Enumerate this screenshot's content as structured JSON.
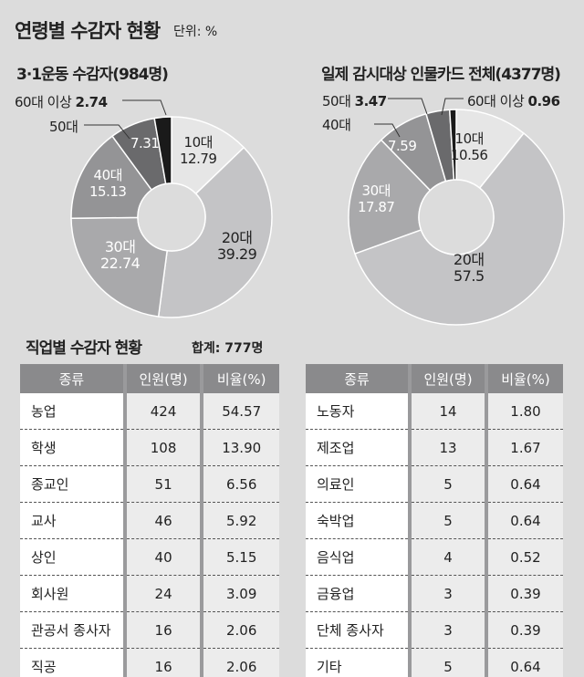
{
  "title": "연령별 수감자 현황",
  "unit": "단위: %",
  "chart_data": [
    {
      "type": "pie",
      "title": "3·1운동 수감자(984명)",
      "categories": [
        "10대",
        "20대",
        "30대",
        "40대",
        "50대",
        "60대 이상"
      ],
      "values": [
        12.79,
        39.29,
        22.74,
        15.13,
        7.31,
        2.74
      ],
      "colors": [
        "#e6e6e6",
        "#c4c4c6",
        "#a9a9ab",
        "#949496",
        "#6a6a6c",
        "#1a1a1a"
      ]
    },
    {
      "type": "pie",
      "title": "일제 감시대상 인물카드 전체(4377명)",
      "categories": [
        "10대",
        "20대",
        "30대",
        "40대",
        "50대",
        "60대 이상"
      ],
      "values": [
        10.56,
        57.5,
        17.87,
        7.59,
        3.47,
        0.96
      ],
      "colors": [
        "#e6e6e6",
        "#c4c4c6",
        "#a9a9ab",
        "#949496",
        "#6a6a6c",
        "#1a1a1a"
      ]
    }
  ],
  "jobs": {
    "title": "직업별 수감자 현황",
    "total": "합계: 777명",
    "headers": [
      "종류",
      "인원(명)",
      "비율(%)"
    ],
    "left": [
      [
        "농업",
        "424",
        "54.57"
      ],
      [
        "학생",
        "108",
        "13.90"
      ],
      [
        "종교인",
        "51",
        "6.56"
      ],
      [
        "교사",
        "46",
        "5.92"
      ],
      [
        "상인",
        "40",
        "5.15"
      ],
      [
        "회사원",
        "24",
        "3.09"
      ],
      [
        "관공서 종사자",
        "16",
        "2.06"
      ],
      [
        "직공",
        "16",
        "2.06"
      ]
    ],
    "right": [
      [
        "노동자",
        "14",
        "1.80"
      ],
      [
        "제조업",
        "13",
        "1.67"
      ],
      [
        "의료인",
        "5",
        "0.64"
      ],
      [
        "숙박업",
        "5",
        "0.64"
      ],
      [
        "음식업",
        "4",
        "0.52"
      ],
      [
        "금융업",
        "3",
        "0.39"
      ],
      [
        "단체 종사자",
        "3",
        "0.39"
      ],
      [
        "기타",
        "5",
        "0.64"
      ]
    ]
  }
}
